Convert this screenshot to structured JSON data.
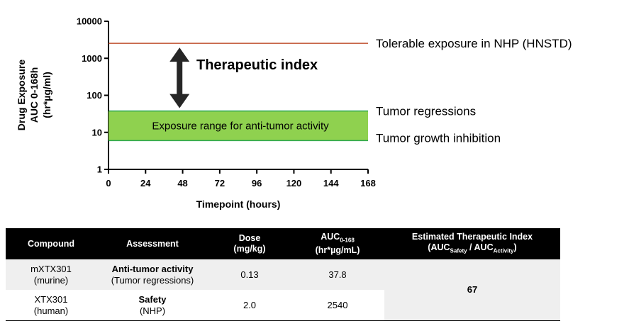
{
  "chart_data": {
    "type": "line",
    "xlabel": "Timepoint (hours)",
    "ylabel_lines": [
      "Drug Exposure",
      "AUC 0-168h",
      "(hr*µg/ml)"
    ],
    "x_ticks": [
      0,
      24,
      48,
      72,
      96,
      120,
      144,
      168
    ],
    "xlim": [
      0,
      168
    ],
    "y_scale": "log",
    "y_ticks": [
      1,
      10,
      100,
      1000,
      10000
    ],
    "ylim": [
      1,
      10000
    ],
    "grid": false,
    "tolerable_line": {
      "y": 2540,
      "color": "#c0502f",
      "label": "Tolerable exposure in NHP (HNSTD)"
    },
    "activity_band": {
      "y_low": 6,
      "y_high": 37.8,
      "fill": "#8fd14f",
      "edge": "#2fa84f",
      "label": "Exposure range for anti-tumor activity",
      "upper_label": "Tumor regressions",
      "lower_label": "Tumor growth inhibition"
    },
    "arrow": {
      "x": 46,
      "label": "Therapeutic index",
      "color": "#262626"
    }
  },
  "table": {
    "headers": [
      {
        "text": "Compound"
      },
      {
        "text": "Assessment"
      },
      {
        "line1": "Dose",
        "line2": "(mg/kg)"
      },
      {
        "line1_main": "AUC",
        "line1_sub": "0-168",
        "line2": "(hr*µg/mL)"
      },
      {
        "line1": "Estimated Therapeutic Index",
        "line2_open": "(AUC",
        "line2_sub1": "Safety",
        "line2_mid": " / AUC",
        "line2_sub2": "Activity",
        "line2_close": ")"
      }
    ],
    "rows": [
      {
        "compound": "mXTX301",
        "species": "(murine)",
        "assessment": "Anti-tumor activity",
        "assessment_detail": "(Tumor regressions)",
        "dose": "0.13",
        "auc": "37.8"
      },
      {
        "compound": "XTX301",
        "species": "(human)",
        "assessment": "Safety",
        "assessment_detail": "(NHP)",
        "dose": "2.0",
        "auc": "2540"
      }
    ],
    "therapeutic_index": "67"
  }
}
